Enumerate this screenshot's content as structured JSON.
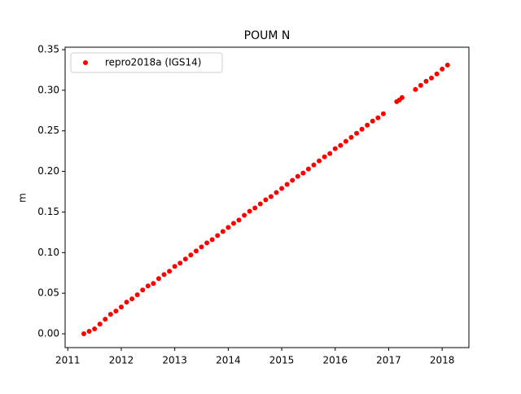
{
  "chart_data": {
    "type": "scatter",
    "title": "POUM N",
    "ylabel": "m",
    "series": [
      {
        "name": "repro2018a (IGS14)",
        "color": "#ff0000",
        "x": [
          2011.3,
          2011.4,
          2011.5,
          2011.6,
          2011.7,
          2011.8,
          2011.9,
          2012.0,
          2012.1,
          2012.2,
          2012.3,
          2012.4,
          2012.5,
          2012.6,
          2012.7,
          2012.8,
          2012.9,
          2013.0,
          2013.1,
          2013.2,
          2013.3,
          2013.4,
          2013.5,
          2013.6,
          2013.7,
          2013.8,
          2013.9,
          2014.0,
          2014.1,
          2014.2,
          2014.3,
          2014.4,
          2014.5,
          2014.6,
          2014.7,
          2014.8,
          2014.9,
          2015.0,
          2015.1,
          2015.2,
          2015.3,
          2015.4,
          2015.5,
          2015.6,
          2015.7,
          2015.8,
          2015.9,
          2016.0,
          2016.1,
          2016.2,
          2016.3,
          2016.4,
          2016.5,
          2016.6,
          2016.7,
          2016.8,
          2016.9,
          2017.15,
          2017.2,
          2017.25,
          2017.5,
          2017.6,
          2017.7,
          2017.8,
          2017.9,
          2018.0,
          2018.1
        ],
        "values": [
          0.0,
          0.003,
          0.006,
          0.012,
          0.018,
          0.024,
          0.028,
          0.033,
          0.039,
          0.043,
          0.048,
          0.054,
          0.059,
          0.062,
          0.068,
          0.073,
          0.077,
          0.083,
          0.087,
          0.092,
          0.097,
          0.102,
          0.107,
          0.112,
          0.116,
          0.121,
          0.126,
          0.131,
          0.136,
          0.14,
          0.146,
          0.151,
          0.155,
          0.16,
          0.165,
          0.169,
          0.174,
          0.179,
          0.184,
          0.189,
          0.194,
          0.198,
          0.203,
          0.208,
          0.213,
          0.218,
          0.222,
          0.228,
          0.232,
          0.237,
          0.242,
          0.247,
          0.252,
          0.257,
          0.262,
          0.266,
          0.271,
          0.286,
          0.288,
          0.291,
          0.301,
          0.306,
          0.311,
          0.315,
          0.32,
          0.326,
          0.331
        ]
      }
    ],
    "xlim": [
      2010.95,
      2018.5
    ],
    "xticks": [
      2011,
      2012,
      2013,
      2014,
      2015,
      2016,
      2017,
      2018
    ],
    "ylim": [
      -0.017,
      0.353
    ],
    "yticks": [
      {
        "value": 0,
        "label": "0.00"
      },
      {
        "value": 0.05,
        "label": "0.05"
      },
      {
        "value": 0.1,
        "label": "0.10"
      },
      {
        "value": 0.15,
        "label": "0.15"
      },
      {
        "value": 0.2,
        "label": "0.20"
      },
      {
        "value": 0.25,
        "label": "0.25"
      },
      {
        "value": 0.3,
        "label": "0.30"
      },
      {
        "value": 0.35,
        "label": "0.35"
      }
    ],
    "legend": "upper left"
  }
}
